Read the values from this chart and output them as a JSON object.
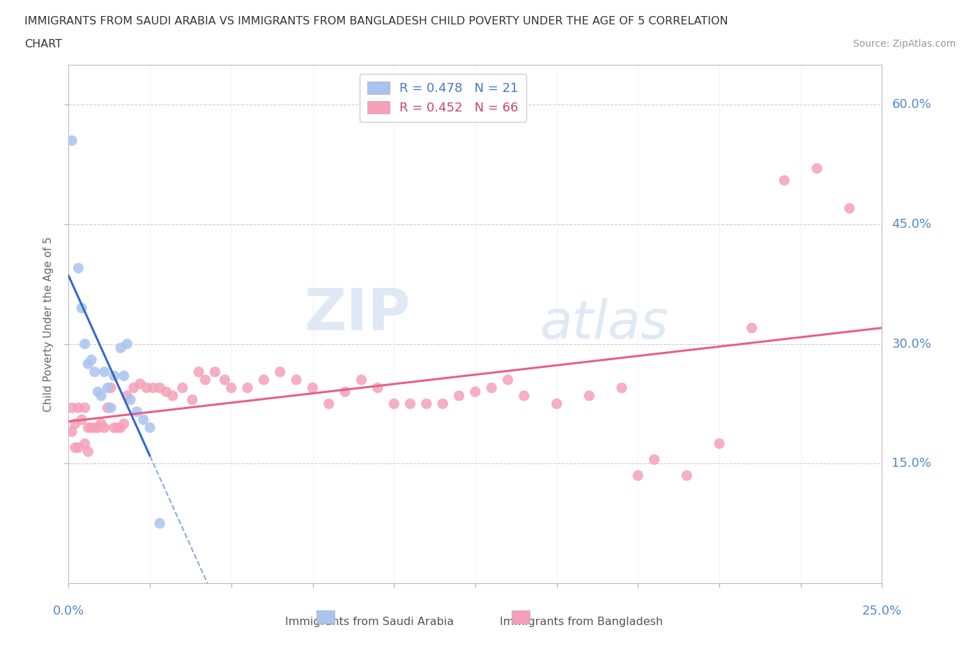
{
  "title_line1": "IMMIGRANTS FROM SAUDI ARABIA VS IMMIGRANTS FROM BANGLADESH CHILD POVERTY UNDER THE AGE OF 5 CORRELATION",
  "title_line2": "CHART",
  "source": "Source: ZipAtlas.com",
  "ylabel_ticks": [
    "15.0%",
    "30.0%",
    "45.0%",
    "60.0%"
  ],
  "ylabel_label": "Child Poverty Under the Age of 5",
  "legend_saudi": "R = 0.478   N = 21",
  "legend_bangla": "R = 0.452   N = 66",
  "saudi_color": "#a8c4f0",
  "bangla_color": "#f5a0b8",
  "saudi_line_color": "#3366cc",
  "bangla_line_color": "#e86080",
  "watermark_zip": "ZIP",
  "watermark_atlas": "atlas",
  "xlim": [
    0.0,
    0.25
  ],
  "ylim": [
    0.0,
    0.65
  ],
  "saudi_x": [
    0.001,
    0.003,
    0.004,
    0.005,
    0.006,
    0.007,
    0.008,
    0.009,
    0.01,
    0.011,
    0.012,
    0.013,
    0.014,
    0.016,
    0.017,
    0.018,
    0.019,
    0.021,
    0.023,
    0.025,
    0.028
  ],
  "saudi_y": [
    0.555,
    0.395,
    0.345,
    0.3,
    0.275,
    0.28,
    0.265,
    0.24,
    0.235,
    0.265,
    0.245,
    0.22,
    0.26,
    0.295,
    0.26,
    0.3,
    0.23,
    0.215,
    0.205,
    0.195,
    0.075
  ],
  "bangla_x": [
    0.001,
    0.001,
    0.002,
    0.002,
    0.003,
    0.003,
    0.004,
    0.005,
    0.005,
    0.006,
    0.006,
    0.007,
    0.008,
    0.009,
    0.01,
    0.011,
    0.012,
    0.013,
    0.014,
    0.015,
    0.016,
    0.017,
    0.018,
    0.02,
    0.022,
    0.024,
    0.026,
    0.028,
    0.03,
    0.032,
    0.035,
    0.038,
    0.04,
    0.042,
    0.045,
    0.048,
    0.05,
    0.055,
    0.06,
    0.065,
    0.07,
    0.075,
    0.08,
    0.085,
    0.09,
    0.095,
    0.1,
    0.105,
    0.11,
    0.115,
    0.12,
    0.125,
    0.13,
    0.135,
    0.14,
    0.15,
    0.16,
    0.17,
    0.175,
    0.18,
    0.19,
    0.2,
    0.21,
    0.22,
    0.23,
    0.24
  ],
  "bangla_y": [
    0.22,
    0.19,
    0.2,
    0.17,
    0.22,
    0.17,
    0.205,
    0.22,
    0.175,
    0.195,
    0.165,
    0.195,
    0.195,
    0.195,
    0.2,
    0.195,
    0.22,
    0.245,
    0.195,
    0.195,
    0.195,
    0.2,
    0.235,
    0.245,
    0.25,
    0.245,
    0.245,
    0.245,
    0.24,
    0.235,
    0.245,
    0.23,
    0.265,
    0.255,
    0.265,
    0.255,
    0.245,
    0.245,
    0.255,
    0.265,
    0.255,
    0.245,
    0.225,
    0.24,
    0.255,
    0.245,
    0.225,
    0.225,
    0.225,
    0.225,
    0.235,
    0.24,
    0.245,
    0.255,
    0.235,
    0.225,
    0.235,
    0.245,
    0.135,
    0.155,
    0.135,
    0.175,
    0.32,
    0.505,
    0.52,
    0.47
  ]
}
